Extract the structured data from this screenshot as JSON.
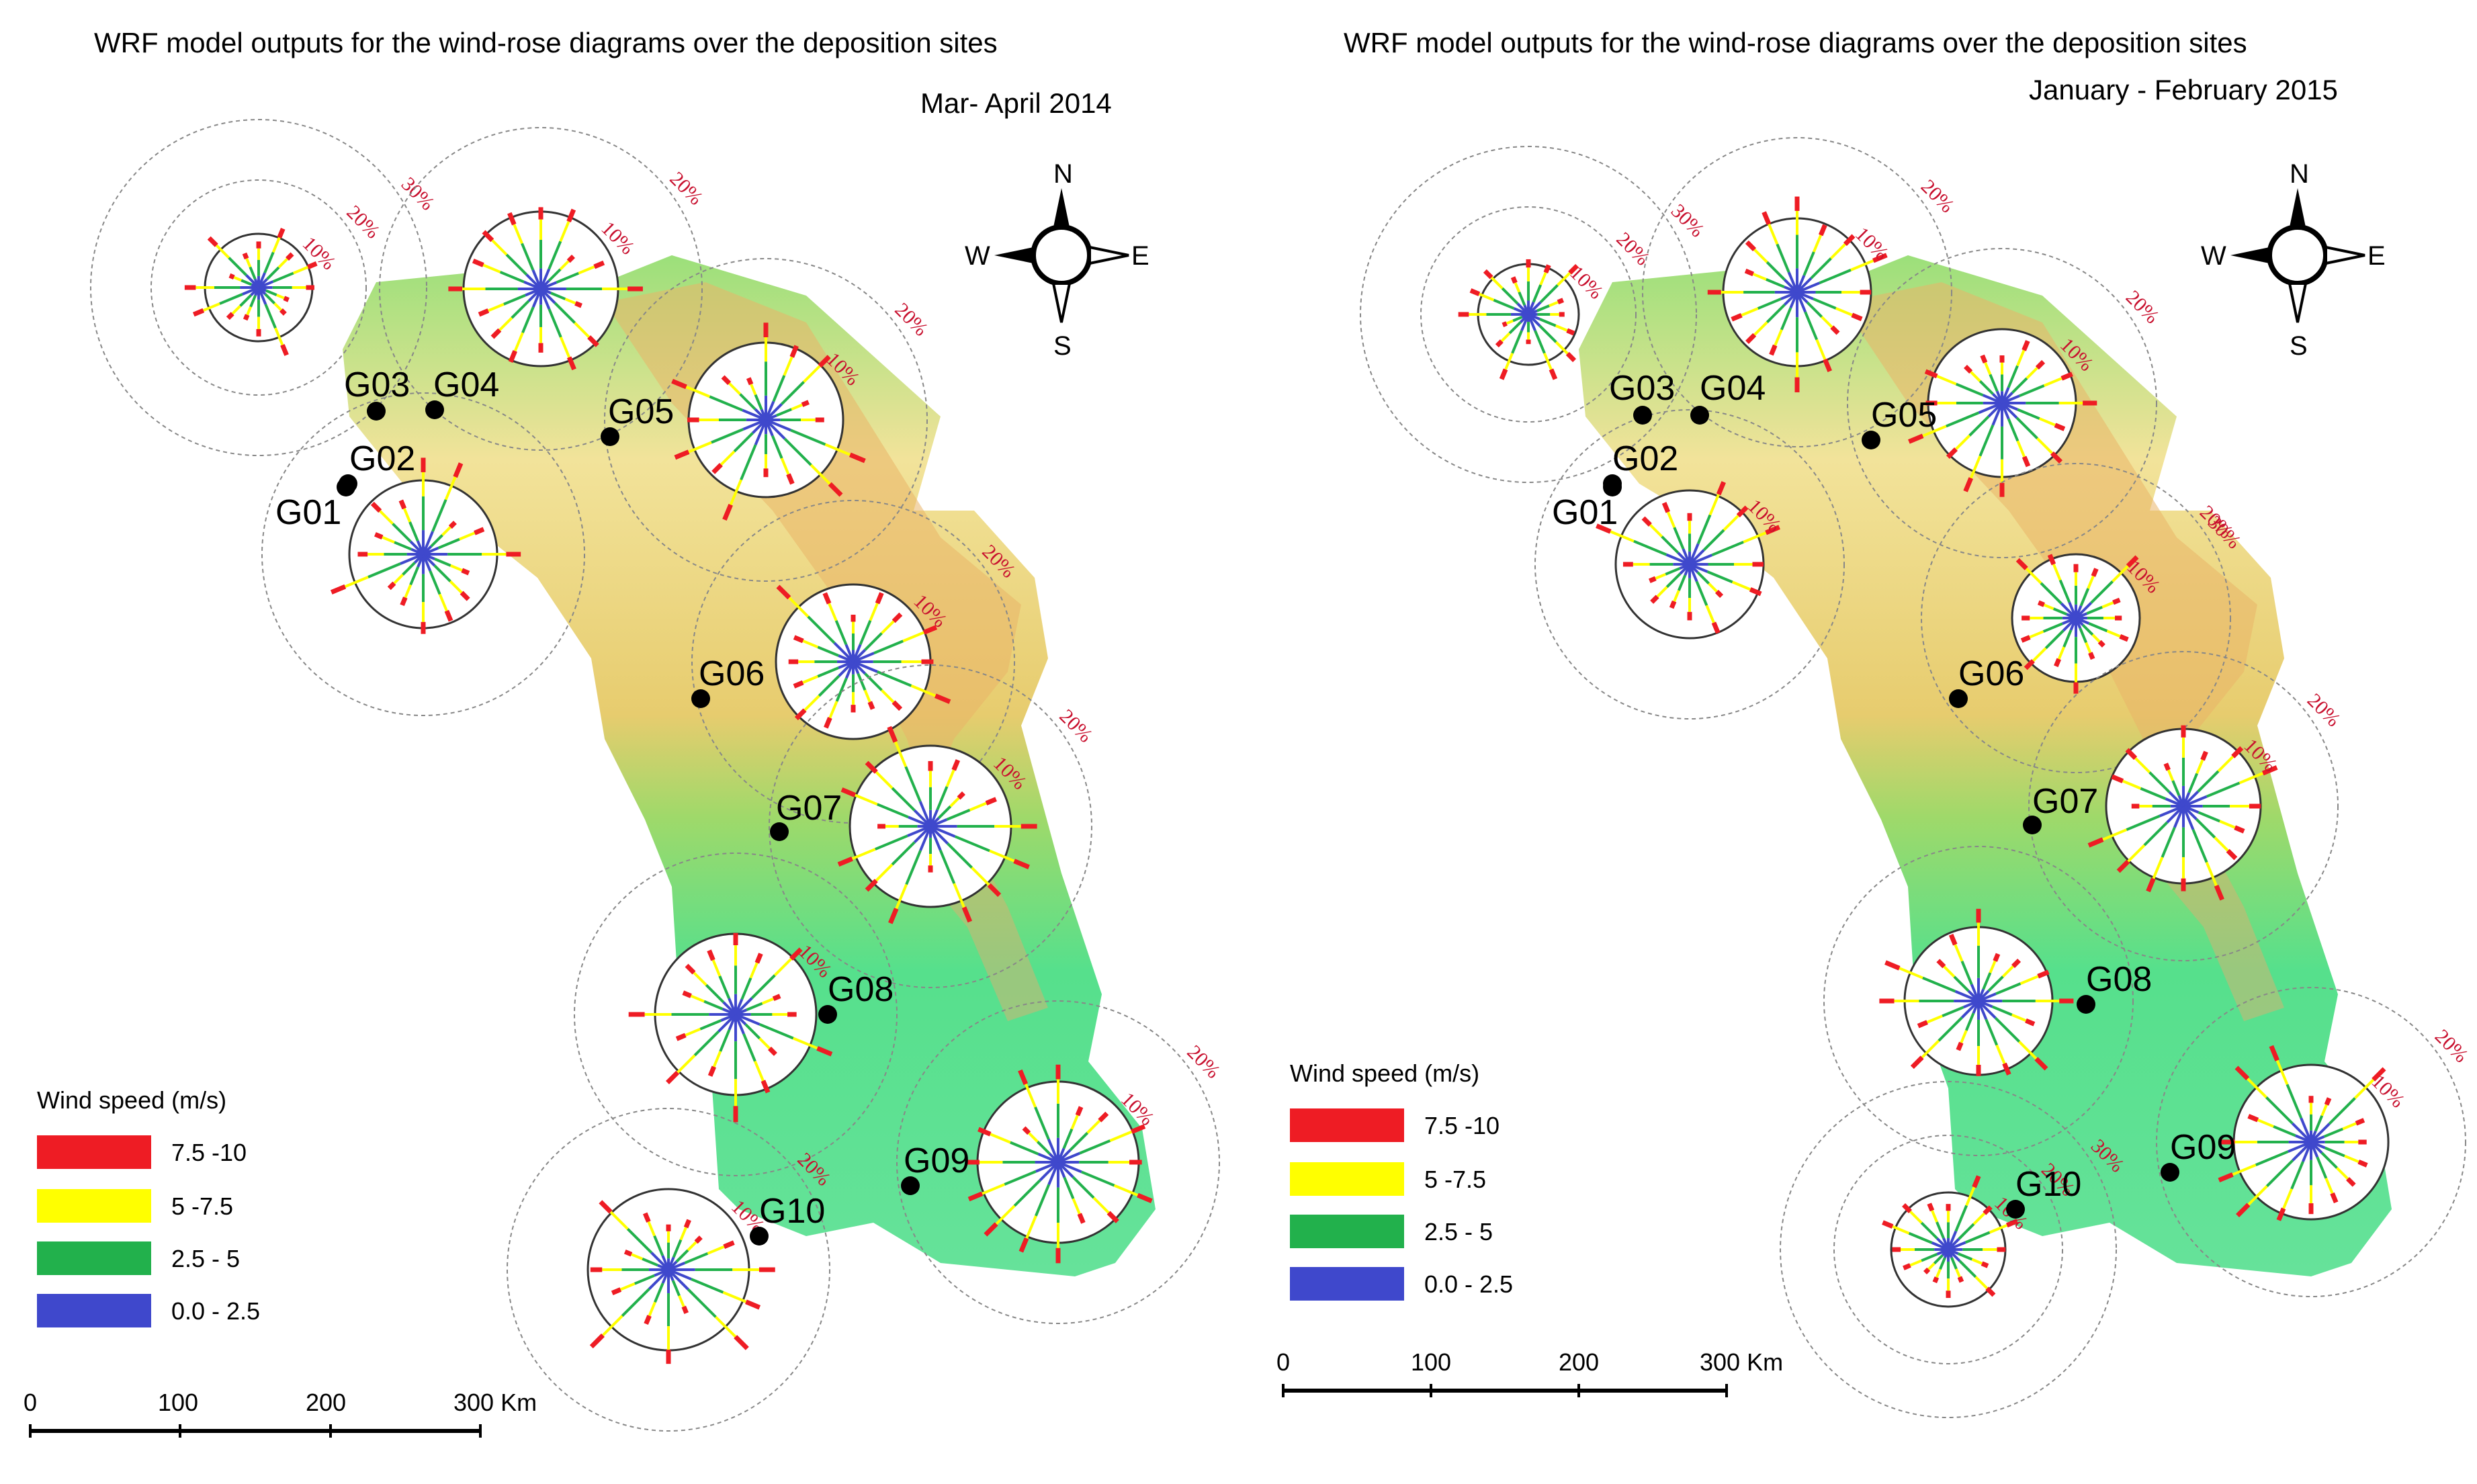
{
  "colors": {
    "speed_7_5_10": "#ee1c24",
    "speed_5_7_5": "#ffff00",
    "speed_2_5_5": "#22b14c",
    "speed_0_2_5": "#3f48cc",
    "percent_label": "#c8102e",
    "terrain_low": "#56e08c",
    "terrain_mid": "#f2e39a",
    "terrain_high": "#e8a860"
  },
  "panels": [
    {
      "title": "WRF model outputs for the wind-rose diagrams over the deposition sites",
      "subtitle": "Mar- April 2014",
      "compass": {
        "n": "N",
        "e": "E",
        "s": "S",
        "w": "W"
      },
      "legend": {
        "title": "Wind speed  (m/s)",
        "items": [
          {
            "label": "7.5 -10",
            "color": "#ee1c24"
          },
          {
            "label": "5 -7.5",
            "color": "#ffff00"
          },
          {
            "label": "2.5 - 5",
            "color": "#22b14c"
          },
          {
            "label": "0.0 - 2.5",
            "color": "#3f48cc"
          }
        ]
      },
      "scale": {
        "ticks": [
          "0",
          "100",
          "200",
          "300 Km"
        ]
      },
      "sites": [
        {
          "id": "G01",
          "rose_pct_labels": []
        },
        {
          "id": "G02",
          "rose_pct_labels": [
            "10%",
            "20%"
          ]
        },
        {
          "id": "G03",
          "rose_pct_labels": [
            "10%",
            "20%",
            "30%"
          ]
        },
        {
          "id": "G04",
          "rose_pct_labels": [
            "10%",
            "20%"
          ]
        },
        {
          "id": "G05",
          "rose_pct_labels": [
            "10%",
            "20%"
          ]
        },
        {
          "id": "G06",
          "rose_pct_labels": [
            "10%",
            "20%"
          ]
        },
        {
          "id": "G07",
          "rose_pct_labels": [
            "10%",
            "20%"
          ]
        },
        {
          "id": "G08",
          "rose_pct_labels": [
            "10%"
          ]
        },
        {
          "id": "G09",
          "rose_pct_labels": [
            "10%",
            "20%"
          ]
        },
        {
          "id": "G10",
          "rose_pct_labels": [
            "10%",
            "20%"
          ]
        }
      ]
    },
    {
      "title": "WRF model outputs for the wind-rose diagrams over the deposition sites",
      "subtitle": "January - February 2015",
      "compass": {
        "n": "N",
        "e": "E",
        "s": "S",
        "w": "W"
      },
      "legend": {
        "title": "Wind speed  (m/s)",
        "items": [
          {
            "label": "7.5 -10",
            "color": "#ee1c24"
          },
          {
            "label": "5 -7.5",
            "color": "#ffff00"
          },
          {
            "label": "2.5 - 5",
            "color": "#22b14c"
          },
          {
            "label": "0.0 - 2.5",
            "color": "#3f48cc"
          }
        ]
      },
      "scale": {
        "ticks": [
          "0",
          "100",
          "200",
          "300 Km"
        ]
      },
      "sites": [
        {
          "id": "G01",
          "rose_pct_labels": [
            "10%"
          ]
        },
        {
          "id": "G02",
          "rose_pct_labels": []
        },
        {
          "id": "G03",
          "rose_pct_labels": [
            "10%",
            "20%",
            "30%"
          ]
        },
        {
          "id": "G04",
          "rose_pct_labels": [
            "10%",
            "20%"
          ]
        },
        {
          "id": "G05",
          "rose_pct_labels": [
            "10%",
            "20%"
          ]
        },
        {
          "id": "G06",
          "rose_pct_labels": [
            "10%",
            "20%",
            "30%"
          ]
        },
        {
          "id": "G07",
          "rose_pct_labels": [
            "10%",
            "20%"
          ]
        },
        {
          "id": "G08",
          "rose_pct_labels": []
        },
        {
          "id": "G09",
          "rose_pct_labels": [
            "10%",
            "20%"
          ]
        },
        {
          "id": "G10",
          "rose_pct_labels": [
            "10%",
            "20%",
            "30%"
          ]
        }
      ]
    }
  ]
}
